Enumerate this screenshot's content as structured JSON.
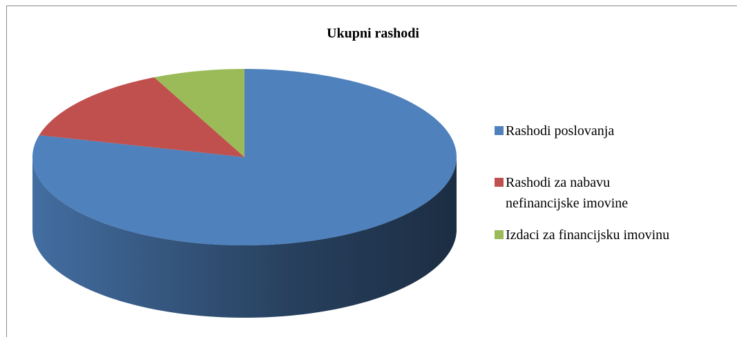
{
  "chart_data": {
    "type": "pie",
    "title": "Ukupni rashodi",
    "categories": [
      "Rashodi poslovanja",
      "Rashodi za nabavu nefinancijske imovine",
      "Izdaci za financijsku imovinu"
    ],
    "values": [
      79,
      14,
      7
    ],
    "colors": [
      "#4f81bd",
      "#c0504d",
      "#9bbb59"
    ],
    "legend": "right"
  }
}
